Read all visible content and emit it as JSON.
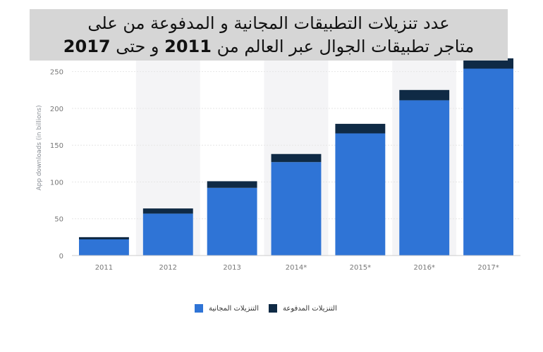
{
  "title": {
    "line1": "عدد تنزيلات التطبيقات المجانية و المدفوعة من على",
    "line2_before_2011": "متاجر تطبيقات الجوال عبر العالم من ",
    "year_start": "2011",
    "line2_middle": " و حتى ",
    "year_end": "2017"
  },
  "colors": {
    "free": "#2f74d6",
    "paid": "#0f2a45",
    "grid": "#e6e6e6",
    "band": "#f4f4f6",
    "tick": "#777777"
  },
  "chart_data": {
    "type": "bar",
    "stacked": true,
    "categories": [
      "2011",
      "2012",
      "2013",
      "2014*",
      "2015*",
      "2016*",
      "2017*"
    ],
    "series": [
      {
        "name": "التنزيلات المجانية",
        "values": [
          22,
          57,
          92,
          127,
          166,
          211,
          254
        ]
      },
      {
        "name": "التنزيلات المدفوعة",
        "values": [
          3,
          7,
          9,
          11,
          13,
          14,
          14
        ]
      }
    ],
    "ylabel": "App downloads (in billions)",
    "yticks": [
      0,
      50,
      100,
      150,
      200,
      250
    ],
    "ylim": [
      0,
      265
    ],
    "grid": true,
    "legend_position": "bottom"
  }
}
